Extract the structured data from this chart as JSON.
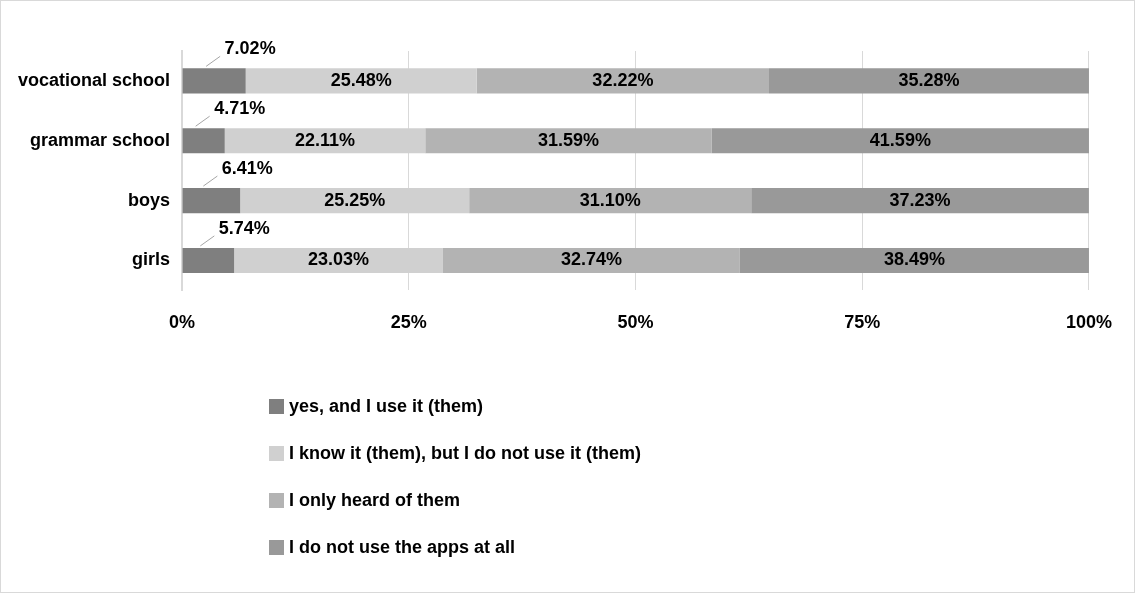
{
  "chart_data": {
    "type": "bar",
    "orientation": "horizontal",
    "stacked": true,
    "categories": [
      "vocational school",
      "grammar school",
      "boys",
      "girls"
    ],
    "series": [
      {
        "name": "yes, and I use it (them)",
        "color": "#7f7f7f",
        "values": [
          7.02,
          4.71,
          6.41,
          5.74
        ],
        "value_labels": [
          "7.02%",
          "4.71%",
          "6.41%",
          "5.74%"
        ]
      },
      {
        "name": "I know it (them), but I do not use it (them)",
        "color": "#d0d0d0",
        "values": [
          25.48,
          22.11,
          25.25,
          23.03
        ],
        "value_labels": [
          "25.48%",
          "22.11%",
          "25.25%",
          "23.03%"
        ]
      },
      {
        "name": "I only heard of them",
        "color": "#b3b3b3",
        "values": [
          32.22,
          31.59,
          31.1,
          32.74
        ],
        "value_labels": [
          "32.22%",
          "31.59%",
          "31.10%",
          "32.74%"
        ]
      },
      {
        "name": "I do not use the apps at all",
        "color": "#999999",
        "values": [
          35.28,
          41.59,
          37.23,
          38.49
        ],
        "value_labels": [
          "35.28%",
          "41.59%",
          "37.23%",
          "38.49%"
        ]
      }
    ],
    "xlim": [
      0,
      100
    ],
    "xticks": [
      {
        "value": 0,
        "label": "0%"
      },
      {
        "value": 25,
        "label": "25%"
      },
      {
        "value": 50,
        "label": "50%"
      },
      {
        "value": 75,
        "label": "75%"
      },
      {
        "value": 100,
        "label": "100%"
      }
    ],
    "grid": "x",
    "legend": "bottom"
  }
}
